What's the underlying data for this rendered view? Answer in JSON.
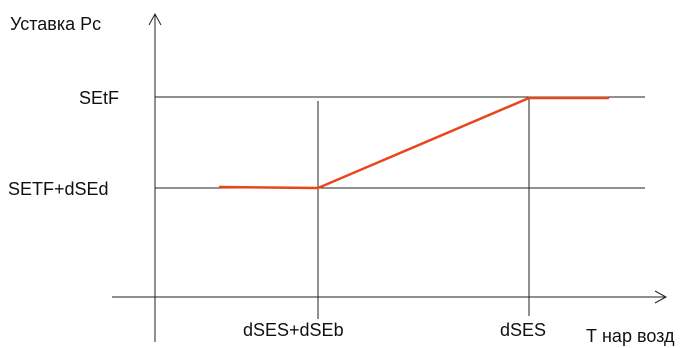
{
  "y_axis_label": "Уставка Рс",
  "x_axis_label": "Т нар возд",
  "y_labels": {
    "upper": "SEtF",
    "lower": "SETF+dSEd"
  },
  "x_labels": {
    "left": "dSES+dSEb",
    "right": "dSES"
  },
  "colors": {
    "curve": "#e8461b",
    "axes": "#222222",
    "guides": "#222222"
  }
}
